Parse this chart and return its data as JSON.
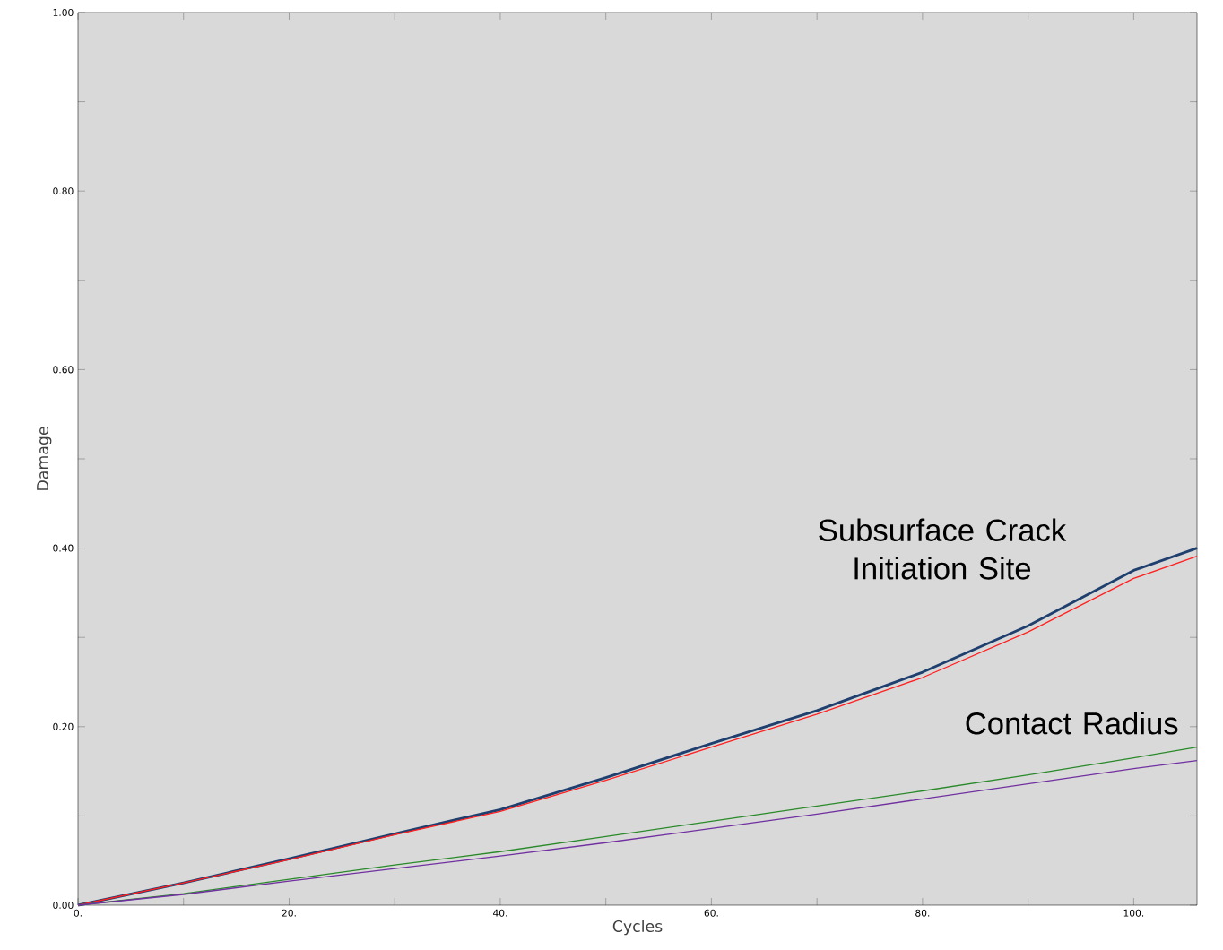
{
  "chart_data": {
    "type": "line",
    "xlabel": "Cycles",
    "ylabel": "Damage",
    "xlim": [
      0,
      106
    ],
    "ylim": [
      0,
      1.0
    ],
    "xticks": [
      {
        "value": 0,
        "label": "0."
      },
      {
        "value": 10,
        "label": null
      },
      {
        "value": 20,
        "label": "20."
      },
      {
        "value": 30,
        "label": null
      },
      {
        "value": 40,
        "label": "40."
      },
      {
        "value": 50,
        "label": null
      },
      {
        "value": 60,
        "label": "60."
      },
      {
        "value": 70,
        "label": null
      },
      {
        "value": 80,
        "label": "80."
      },
      {
        "value": 90,
        "label": null
      },
      {
        "value": 100,
        "label": "100."
      }
    ],
    "yticks": [
      {
        "value": 0,
        "label": "0.00"
      },
      {
        "value": 0.1,
        "label": null
      },
      {
        "value": 0.2,
        "label": "0.20"
      },
      {
        "value": 0.3,
        "label": null
      },
      {
        "value": 0.4,
        "label": "0.40"
      },
      {
        "value": 0.5,
        "label": null
      },
      {
        "value": 0.6,
        "label": "0.60"
      },
      {
        "value": 0.7,
        "label": null
      },
      {
        "value": 0.8,
        "label": "0.80"
      },
      {
        "value": 0.9,
        "label": null
      },
      {
        "value": 1.0,
        "label": "1.00"
      }
    ],
    "x": [
      0,
      10,
      20,
      30,
      40,
      50,
      60,
      70,
      80,
      90,
      100,
      106
    ],
    "series": [
      {
        "color": "#1f3f6f",
        "values": [
          0,
          0.025,
          0.052,
          0.08,
          0.107,
          0.143,
          0.181,
          0.218,
          0.261,
          0.313,
          0.375,
          0.4
        ]
      },
      {
        "color": "#ff2020",
        "values": [
          0,
          0.025,
          0.051,
          0.079,
          0.105,
          0.14,
          0.177,
          0.214,
          0.255,
          0.306,
          0.366,
          0.391
        ]
      },
      {
        "color": "#2a8a2a",
        "values": [
          0,
          0.013,
          0.029,
          0.045,
          0.06,
          0.077,
          0.094,
          0.111,
          0.128,
          0.146,
          0.165,
          0.177
        ]
      },
      {
        "color": "#7030a0",
        "values": [
          0,
          0.012,
          0.027,
          0.041,
          0.055,
          0.07,
          0.086,
          0.102,
          0.119,
          0.136,
          0.153,
          0.162
        ]
      }
    ],
    "annotations": [
      "Subsurface Crack Initiation Site",
      "Contact Radius"
    ],
    "grid": false,
    "line_style": "solid",
    "marker": "none"
  }
}
